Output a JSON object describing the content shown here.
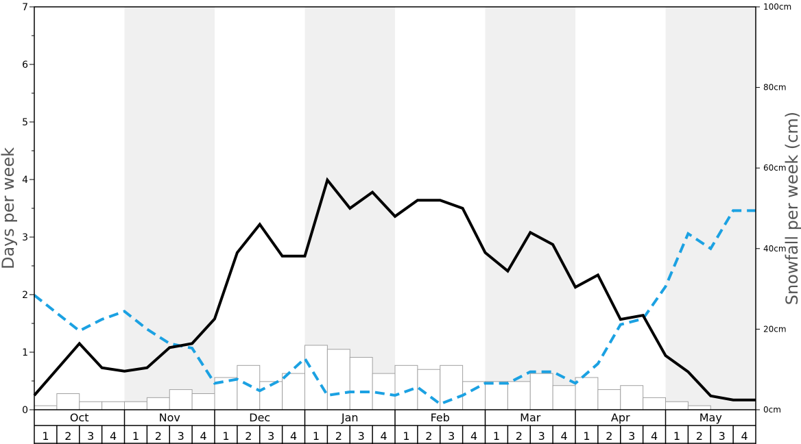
{
  "chart_data": {
    "type": "bar+line",
    "title": "",
    "ylabel_left": "Days per week",
    "ylabel_right": "Snowfall per week (cm)",
    "ylim_left": [
      0,
      7
    ],
    "ylim_right": [
      0,
      100
    ],
    "left_ticks": [
      "0",
      "1",
      "2",
      "3",
      "4",
      "5",
      "6",
      "7"
    ],
    "right_ticks": [
      "0cm",
      "20cm",
      "40cm",
      "60cm",
      "80cm",
      "100cm"
    ],
    "months": [
      "Oct",
      "Nov",
      "Dec",
      "Jan",
      "Feb",
      "Mar",
      "Apr",
      "May"
    ],
    "weeks": [
      "1",
      "2",
      "3",
      "4"
    ],
    "shaded_months": [
      "Nov",
      "Jan",
      "Mar",
      "May"
    ],
    "colors": {
      "shade": "#f0f0f0",
      "bar_fill": "#ffffff",
      "bar_stroke": "#a0a0a0",
      "days_line": "#000000",
      "snow_line": "#1ba1e2"
    },
    "series": [
      {
        "type": "bar",
        "axis": "right",
        "unit": "cm",
        "values": [
          1,
          4,
          2,
          2,
          2,
          3,
          5,
          4,
          8,
          11,
          7,
          9,
          16,
          15,
          13,
          9,
          11,
          10,
          11,
          7,
          7,
          7,
          9,
          6,
          8,
          5,
          6,
          3,
          2,
          1,
          0,
          0
        ]
      },
      {
        "type": "line",
        "style": "solid",
        "axis": "left",
        "values": [
          0.25,
          0.7,
          1.15,
          0.73,
          0.67,
          0.73,
          1.08,
          1.15,
          1.58,
          2.73,
          3.22,
          2.67,
          2.67,
          3.99,
          3.5,
          3.78,
          3.36,
          3.64,
          3.64,
          3.5,
          2.73,
          2.41,
          3.08,
          2.87,
          2.13,
          2.34,
          1.57,
          1.64,
          0.94,
          0.66,
          0.24,
          0.17
        ]
      },
      {
        "type": "line",
        "style": "dashed",
        "axis": "left",
        "values": [
          1.99,
          1.68,
          1.37,
          1.57,
          1.71,
          1.4,
          1.15,
          1.07,
          0.46,
          0.53,
          0.33,
          0.53,
          0.89,
          0.25,
          0.31,
          0.31,
          0.25,
          0.39,
          0.1,
          0.25,
          0.46,
          0.46,
          0.66,
          0.66,
          0.46,
          0.8,
          1.48,
          1.58,
          2.14,
          3.06,
          2.8,
          3.46
        ]
      }
    ]
  }
}
